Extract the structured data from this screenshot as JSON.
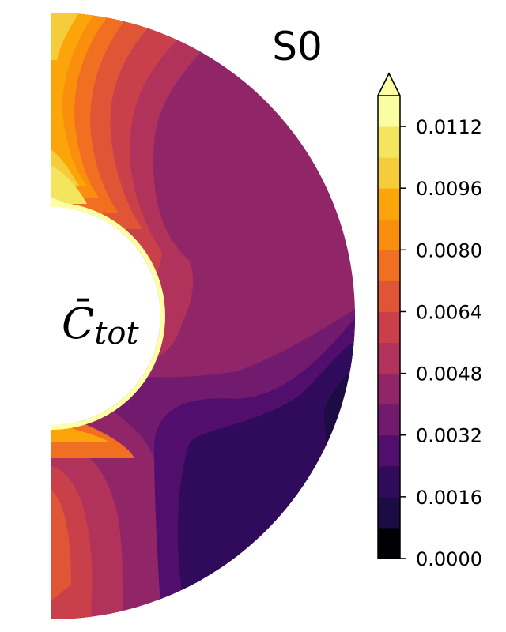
{
  "chart_data": {
    "type": "heatmap",
    "title": "S0",
    "colorbar_label": "C̄_tot",
    "colorbar_label_main": "C̄",
    "colorbar_label_sub": "tot",
    "colormap": "inferno",
    "colorbar_range": [
      0.0,
      0.012
    ],
    "colorbar_ticks": [
      0.0,
      0.0016,
      0.0032,
      0.0048,
      0.0064,
      0.008,
      0.0096,
      0.0112
    ],
    "colorbar_tick_labels": [
      "0.0000",
      "0.0016",
      "0.0032",
      "0.0048",
      "0.0064",
      "0.0080",
      "0.0096",
      "0.0112"
    ],
    "contour_levels": [
      0.0,
      0.0008,
      0.0016,
      0.0024,
      0.0032,
      0.004,
      0.0048,
      0.0056,
      0.0064,
      0.0072,
      0.008,
      0.0088,
      0.0096,
      0.0104,
      0.0112,
      0.012
    ],
    "colorbar_extend": "max",
    "level_colors": [
      "#000004",
      "#1c0c43",
      "#300a5b",
      "#510e6c",
      "#721a6e",
      "#902568",
      "#b1325a",
      "#ca404a",
      "#e05536",
      "#f16f20",
      "#fa8e0d",
      "#fca50a",
      "#f5cd3a",
      "#f3e55d",
      "#fafda1"
    ],
    "extend_color": "#fcffa4"
  }
}
